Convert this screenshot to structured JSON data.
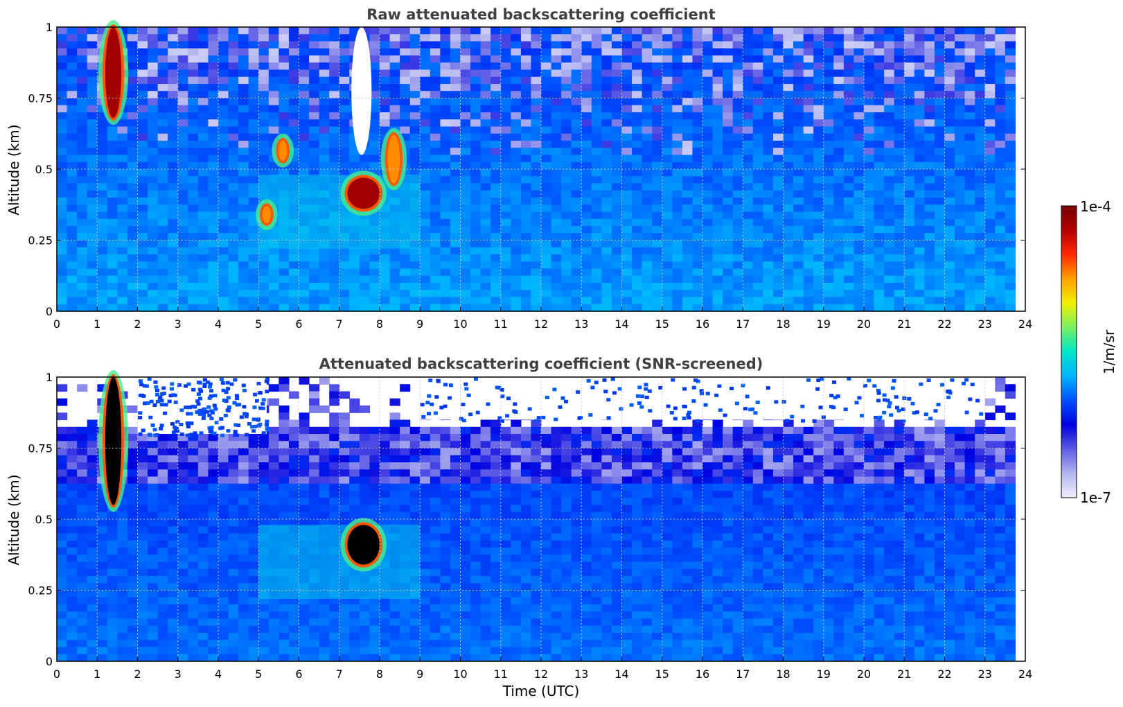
{
  "chart_data": [
    {
      "type": "heatmap",
      "title": "Raw attenuated backscattering coefficient",
      "xlabel": "",
      "ylabel": "Altitude (km)",
      "xlim": [
        0,
        24
      ],
      "ylim": [
        0,
        1
      ],
      "x_ticks": [
        "0",
        "1",
        "2",
        "3",
        "4",
        "5",
        "6",
        "7",
        "8",
        "9",
        "10",
        "11",
        "12",
        "13",
        "14",
        "15",
        "16",
        "17",
        "18",
        "19",
        "20",
        "21",
        "22",
        "23",
        "24"
      ],
      "y_ticks": [
        "0",
        "0.25",
        "0.5",
        "0.75",
        "1"
      ],
      "grid": true,
      "features": [
        {
          "kind": "plume",
          "x": [
            1.2,
            1.6
          ],
          "y": [
            0.68,
            1.0
          ],
          "level": "1e-4"
        },
        {
          "kind": "cloud",
          "x": [
            7.2,
            8.0
          ],
          "y": [
            0.36,
            0.47
          ],
          "level": "1e-4"
        },
        {
          "kind": "cloud",
          "x": [
            5.1,
            5.3
          ],
          "y": [
            0.31,
            0.37
          ],
          "level": "high"
        },
        {
          "kind": "cloud",
          "x": [
            5.5,
            5.7
          ],
          "y": [
            0.53,
            0.6
          ],
          "level": "high"
        },
        {
          "kind": "cloud",
          "x": [
            8.2,
            8.5
          ],
          "y": [
            0.45,
            0.62
          ],
          "level": "high"
        },
        {
          "kind": "no-signal",
          "x": [
            7.3,
            7.8
          ],
          "y": [
            0.55,
            1.0
          ]
        }
      ]
    },
    {
      "type": "heatmap",
      "title": "Attenuated backscattering coefficient (SNR-screened)",
      "xlabel": "Time (UTC)",
      "ylabel": "Altitude (km)",
      "xlim": [
        0,
        24
      ],
      "ylim": [
        0,
        1
      ],
      "x_ticks": [
        "0",
        "1",
        "2",
        "3",
        "4",
        "5",
        "6",
        "7",
        "8",
        "9",
        "10",
        "11",
        "12",
        "13",
        "14",
        "15",
        "16",
        "17",
        "18",
        "19",
        "20",
        "21",
        "22",
        "23",
        "24"
      ],
      "y_ticks": [
        "0",
        "0.25",
        "0.5",
        "0.75",
        "1"
      ],
      "grid": true,
      "features": [
        {
          "kind": "plume",
          "x": [
            1.2,
            1.6
          ],
          "y": [
            0.55,
            1.0
          ],
          "level": "saturated"
        },
        {
          "kind": "cloud",
          "x": [
            7.2,
            8.0
          ],
          "y": [
            0.34,
            0.48
          ],
          "level": "saturated"
        },
        {
          "kind": "screened",
          "x": [
            2.0,
            5.2
          ],
          "y": [
            0.8,
            1.0
          ]
        },
        {
          "kind": "screened",
          "x": [
            9.0,
            23.0
          ],
          "y": [
            0.85,
            1.0
          ]
        }
      ]
    }
  ],
  "colorbar": {
    "label": "1/m/sr",
    "max_label": "1e-4",
    "min_label": "1e-7",
    "colormap": [
      "#f0f0ff",
      "#b4b4f0",
      "#5a5ae6",
      "#0000e0",
      "#0050ff",
      "#00b4ff",
      "#00e6c8",
      "#78f064",
      "#f0f000",
      "#ffa000",
      "#ff2800",
      "#b40000",
      "#780000"
    ]
  }
}
